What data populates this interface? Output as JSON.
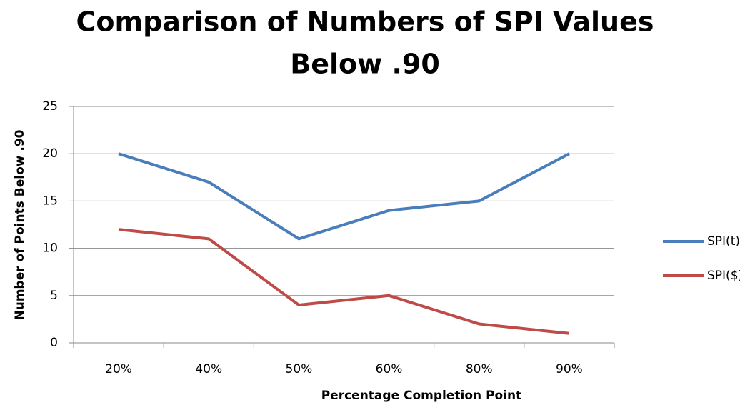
{
  "chart_data": {
    "type": "line",
    "title": [
      "Comparison of Numbers of SPI Values",
      "Below .90"
    ],
    "x_label": "Percentage Completion Point",
    "y_label": "Number of Points Below .90",
    "categories": [
      "20%",
      "40%",
      "50%",
      "60%",
      "80%",
      "90%"
    ],
    "series": [
      {
        "name": "SPI(t)",
        "color": "#4a7ebb",
        "values": [
          20,
          17,
          11,
          14,
          15,
          20
        ]
      },
      {
        "name": "SPI($)",
        "color": "#be4b48",
        "values": [
          12,
          11,
          4,
          5,
          2,
          1
        ]
      }
    ],
    "ylim": [
      0,
      25
    ],
    "yticks": [
      0,
      5,
      10,
      15,
      20,
      25
    ],
    "grid": true,
    "legend": "right"
  }
}
